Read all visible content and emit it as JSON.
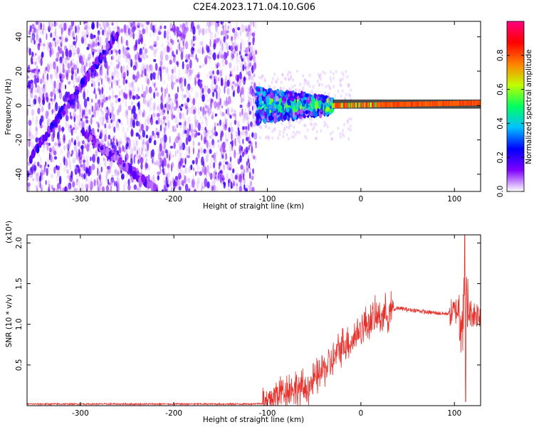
{
  "title": "C2E4.2023.171.04.10.G06",
  "chart_data": [
    {
      "type": "heatmap",
      "title": "C2E4.2023.171.04.10.G06",
      "xlabel": "Height of straight line (km)",
      "ylabel": "Frequency (Hz)",
      "xlim": [
        -357,
        128
      ],
      "ylim": [
        -50,
        49
      ],
      "xticks": [
        -300,
        -200,
        -100,
        0,
        100
      ],
      "yticks": [
        -40,
        -20,
        0,
        20,
        40
      ],
      "grid": false,
      "colorbar": {
        "label": "Normalized spectral amplitude",
        "range": [
          0,
          1
        ],
        "ticks": [
          "0.0",
          "0.2",
          "0.4",
          "0.6",
          "0.8"
        ],
        "colors": [
          "#ffffff",
          "#8000ff",
          "#0000ff",
          "#00c0ff",
          "#00ff60",
          "#c0ff00",
          "#ff8000",
          "#ff0000",
          "#ff0080"
        ]
      },
      "features": [
        {
          "name": "diagonal-streak-1",
          "x": [
            -353,
            -260
          ],
          "y": [
            -30,
            42
          ],
          "amplitude": 0.2
        },
        {
          "name": "diagonal-streak-2",
          "x": [
            -300,
            -218
          ],
          "y": [
            -15,
            -50
          ],
          "amplitude": 0.15
        },
        {
          "name": "transition-band",
          "x": [
            -112,
            -30
          ],
          "y": [
            -5,
            5
          ],
          "amplitude": 0.4
        },
        {
          "name": "signal-line",
          "x": [
            -30,
            128
          ],
          "y": [
            0,
            1.5
          ],
          "amplitude": 0.8
        }
      ],
      "noise_region_x": [
        -357,
        -112
      ]
    },
    {
      "type": "line",
      "xlabel": "Height of straight line (km)",
      "ylabel": "SNR (10 * v/v)",
      "y_multiplier": "(x10⁴)",
      "xlim": [
        -357,
        128
      ],
      "ylim": [
        0,
        2.1
      ],
      "xticks": [
        -300,
        -200,
        -100,
        0,
        100
      ],
      "yticks": [
        "0.5",
        "1.0",
        "1.5",
        "2.0"
      ],
      "grid": false,
      "color": "#e8302b",
      "series": [
        {
          "x": [
            -357,
            -300,
            -200,
            -120,
            -100,
            -90,
            -80,
            -70,
            -60,
            -50,
            -40,
            -30,
            -20,
            -10,
            0,
            10,
            20,
            30,
            40,
            50,
            60,
            70,
            80,
            90,
            100,
            105,
            110,
            115,
            120,
            128
          ],
          "y": [
            0.02,
            0.02,
            0.02,
            0.02,
            0.03,
            0.15,
            0.2,
            0.22,
            0.2,
            0.3,
            0.45,
            0.55,
            0.75,
            0.8,
            0.95,
            1.05,
            1.1,
            1.15,
            1.2,
            1.18,
            1.17,
            1.15,
            1.14,
            1.13,
            1.15,
            1.2,
            1.1,
            1.15,
            1.13,
            1.13
          ]
        }
      ]
    }
  ]
}
